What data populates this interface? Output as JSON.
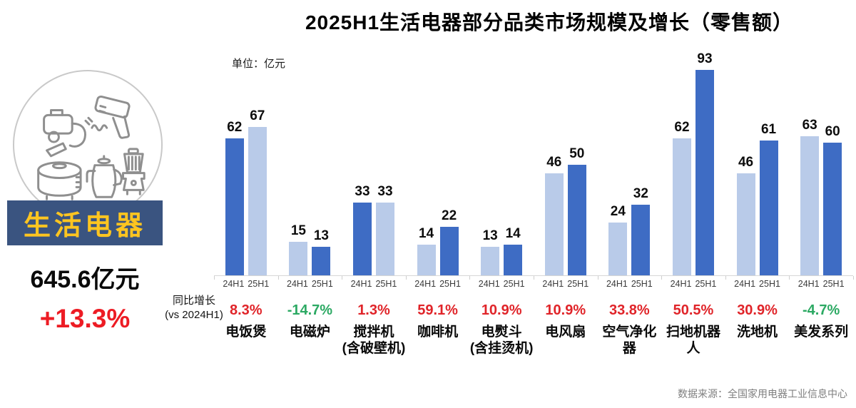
{
  "page": {
    "title": "2025H1生活电器部分品类市场规模及增长（零售额）",
    "unit_label": "单位：亿元",
    "source": "数据来源：全国家用电器工业信息中心"
  },
  "left_panel": {
    "badge_label": "生活电器",
    "total_value": "645.6亿元",
    "total_growth": "+13.3%",
    "icon_names": [
      "vacuum-cleaner-icon",
      "hair-dryer-icon",
      "rice-cooker-icon",
      "kettle-icon",
      "blender-icon"
    ]
  },
  "growth_header": {
    "line1": "同比增长",
    "line2": "(vs 2024H1)"
  },
  "colors": {
    "bar_dark_blue": "#3e6cc4",
    "bar_light_blue": "#b9cbe9",
    "growth_up_red": "#e02429",
    "growth_down_green": "#2ca963",
    "badge_bg_navy": "#3a5480",
    "badge_text_gold": "#fec520",
    "total_growth_red": "#ed1c24",
    "axis_gray": "#d6d6d6",
    "source_gray": "#7f7f7f"
  },
  "chart_data": {
    "type": "bar",
    "unit": "亿元",
    "series_names": [
      "24H1",
      "25H1"
    ],
    "ylim": [
      0,
      100
    ],
    "grid": false,
    "legend_position": "none",
    "categories": [
      "电饭煲",
      "电磁炉",
      "搅拌机(含破壁机)",
      "咖啡机",
      "电熨斗(含挂烫机)",
      "电风扇",
      "空气净化器",
      "扫地机器人",
      "洗地机",
      "美发系列"
    ],
    "series": [
      {
        "name": "24H1",
        "values": [
          62,
          15,
          33,
          14,
          13,
          46,
          24,
          62,
          46,
          63
        ]
      },
      {
        "name": "25H1",
        "values": [
          67,
          13,
          33,
          22,
          14,
          50,
          32,
          93,
          61,
          60
        ]
      }
    ],
    "growth_labels": [
      "8.3%",
      "-14.7%",
      "1.3%",
      "59.1%",
      "10.9%",
      "10.9%",
      "33.8%",
      "50.5%",
      "30.9%",
      "-4.7%"
    ],
    "groups": [
      {
        "label_lines": [
          "电饭煲"
        ],
        "v_24h1": 62,
        "v_25h1": 67,
        "growth": "8.3%",
        "trend": "up",
        "color_24h1": "dark",
        "color_25h1": "light"
      },
      {
        "label_lines": [
          "电磁炉"
        ],
        "v_24h1": 15,
        "v_25h1": 13,
        "growth": "-14.7%",
        "trend": "down",
        "color_24h1": "light",
        "color_25h1": "dark"
      },
      {
        "label_lines": [
          "搅拌机",
          "(含破壁机)"
        ],
        "v_24h1": 33,
        "v_25h1": 33,
        "growth": "1.3%",
        "trend": "up",
        "color_24h1": "dark",
        "color_25h1": "light"
      },
      {
        "label_lines": [
          "咖啡机"
        ],
        "v_24h1": 14,
        "v_25h1": 22,
        "growth": "59.1%",
        "trend": "up",
        "color_24h1": "light",
        "color_25h1": "dark"
      },
      {
        "label_lines": [
          "电熨斗",
          "(含挂烫机)"
        ],
        "v_24h1": 13,
        "v_25h1": 14,
        "growth": "10.9%",
        "trend": "up",
        "color_24h1": "light",
        "color_25h1": "dark"
      },
      {
        "label_lines": [
          "电风扇"
        ],
        "v_24h1": 46,
        "v_25h1": 50,
        "growth": "10.9%",
        "trend": "up",
        "color_24h1": "light",
        "color_25h1": "dark"
      },
      {
        "label_lines": [
          "空气净化器"
        ],
        "v_24h1": 24,
        "v_25h1": 32,
        "growth": "33.8%",
        "trend": "up",
        "color_24h1": "light",
        "color_25h1": "dark"
      },
      {
        "label_lines": [
          "扫地机器人"
        ],
        "v_24h1": 62,
        "v_25h1": 93,
        "growth": "50.5%",
        "trend": "up",
        "color_24h1": "light",
        "color_25h1": "dark"
      },
      {
        "label_lines": [
          "洗地机"
        ],
        "v_24h1": 46,
        "v_25h1": 61,
        "growth": "30.9%",
        "trend": "up",
        "color_24h1": "light",
        "color_25h1": "dark"
      },
      {
        "label_lines": [
          "美发系列"
        ],
        "v_24h1": 63,
        "v_25h1": 60,
        "growth": "-4.7%",
        "trend": "down",
        "color_24h1": "light",
        "color_25h1": "dark"
      }
    ]
  }
}
